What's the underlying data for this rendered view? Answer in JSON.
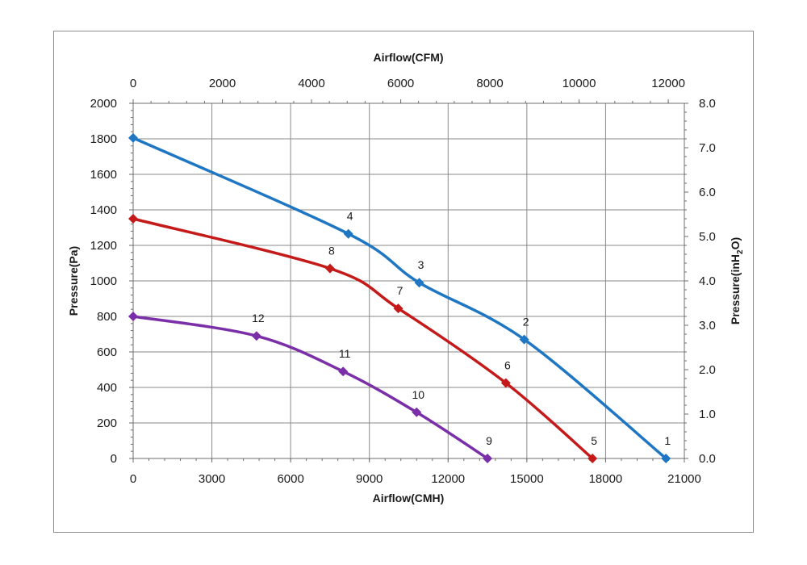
{
  "chart_data": {
    "type": "line",
    "x_axis_bottom": {
      "label": "Airflow(CMH)",
      "range": [
        0,
        21000
      ],
      "ticks": [
        0,
        3000,
        6000,
        9000,
        12000,
        15000,
        18000,
        21000
      ]
    },
    "x_axis_top": {
      "label": "Airflow(CFM)",
      "range": [
        0,
        12360
      ],
      "ticks": [
        0,
        2000,
        4000,
        6000,
        8000,
        10000,
        12000
      ]
    },
    "y_axis_left": {
      "label": "Pressure(Pa)",
      "range": [
        0,
        2000
      ],
      "ticks": [
        0,
        200,
        400,
        600,
        800,
        1000,
        1200,
        1400,
        1600,
        1800,
        2000
      ]
    },
    "y_axis_right": {
      "label_main": "Pressure(inH",
      "label_sub": "2",
      "label_end": "O)",
      "range": [
        0,
        8.0
      ],
      "ticks": [
        "0.0",
        "1.0",
        "2.0",
        "3.0",
        "4.0",
        "5.0",
        "6.0",
        "7.0",
        "8.0"
      ]
    },
    "grid": true,
    "series": [
      {
        "color": "#1f77c4",
        "points": [
          {
            "x": 0,
            "y": 1805,
            "label": ""
          },
          {
            "x": 8200,
            "y": 1265,
            "label": "4"
          },
          {
            "x": 10900,
            "y": 990,
            "label": "3"
          },
          {
            "x": 14900,
            "y": 670,
            "label": "2"
          },
          {
            "x": 20300,
            "y": 0,
            "label": "1"
          }
        ]
      },
      {
        "color": "#c41a1a",
        "points": [
          {
            "x": 0,
            "y": 1350,
            "label": ""
          },
          {
            "x": 7500,
            "y": 1070,
            "label": "8"
          },
          {
            "x": 10100,
            "y": 845,
            "label": "7"
          },
          {
            "x": 14200,
            "y": 425,
            "label": "6"
          },
          {
            "x": 17500,
            "y": 0,
            "label": "5"
          }
        ]
      },
      {
        "color": "#7a2fa8",
        "points": [
          {
            "x": 0,
            "y": 800,
            "label": ""
          },
          {
            "x": 4700,
            "y": 690,
            "label": "12"
          },
          {
            "x": 8000,
            "y": 490,
            "label": "11"
          },
          {
            "x": 10800,
            "y": 260,
            "label": "10"
          },
          {
            "x": 13500,
            "y": 0,
            "label": "9"
          }
        ]
      }
    ]
  }
}
